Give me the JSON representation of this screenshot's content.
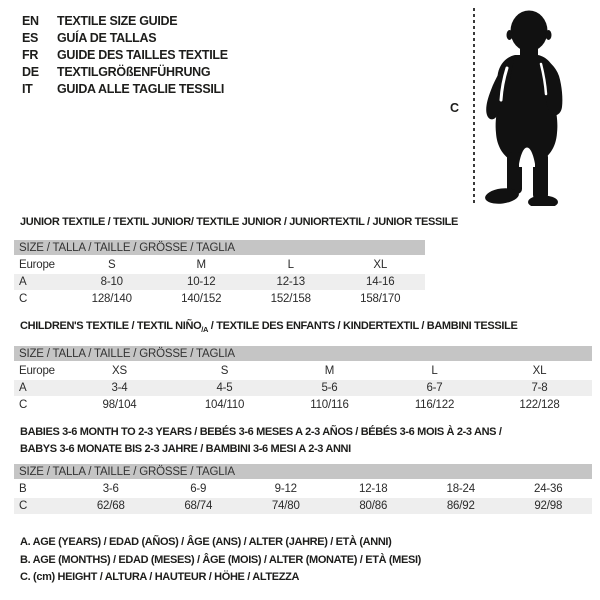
{
  "colors": {
    "table_header_bg": "#c5c5c5",
    "row_shaded_bg": "#eeeeee",
    "text": "#1d1d1b",
    "silhouette": "#111111"
  },
  "header": {
    "languages": [
      {
        "code": "EN",
        "label": "TEXTILE SIZE GUIDE"
      },
      {
        "code": "ES",
        "label": "GUÍA DE TALLAS"
      },
      {
        "code": "FR",
        "label": "GUIDE DES TAILLES TEXTILE"
      },
      {
        "code": "DE",
        "label": "TEXTILGRÖßENFÜHRUNG"
      },
      {
        "code": "IT",
        "label": "GUIDA ALLE TAGLIE TESSILI"
      }
    ]
  },
  "figure": {
    "height_label": "C",
    "image": "baby-toddler-silhouette"
  },
  "tables": [
    {
      "title": "JUNIOR TEXTILE / TEXTIL JUNIOR/ TEXTILE JUNIOR / JUNIORTEXTIL / JUNIOR TESSILE",
      "size_header": "SIZE / TALLA / TAILLE / GRÖSSE / TAGLIA",
      "rows": [
        {
          "cells": [
            "Europe",
            "S",
            "M",
            "L",
            "XL"
          ],
          "shaded": false
        },
        {
          "cells": [
            "A",
            "8-10",
            "10-12",
            "12-13",
            "14-16"
          ],
          "shaded": true
        },
        {
          "cells": [
            "C",
            "128/140",
            "140/152",
            "152/158",
            "158/170"
          ],
          "shaded": false
        }
      ]
    },
    {
      "title_parts": {
        "prefix": "CHILDREN'S TEXTILE / TEXTIL NIÑO",
        "sub": "/A",
        "suffix": " / TEXTILE DES ENFANTS / KINDERTEXTIL / BAMBINI TESSILE"
      },
      "size_header": "SIZE / TALLA / TAILLE / GRÖSSE / TAGLIA",
      "rows": [
        {
          "cells": [
            "Europe",
            "XS",
            "S",
            "M",
            "L",
            "XL"
          ],
          "shaded": false
        },
        {
          "cells": [
            "A",
            "3-4",
            "4-5",
            "5-6",
            "6-7",
            "7-8"
          ],
          "shaded": true
        },
        {
          "cells": [
            "C",
            "98/104",
            "104/110",
            "110/116",
            "116/122",
            "122/128"
          ],
          "shaded": false
        }
      ]
    },
    {
      "title_line1": "BABIES 3-6 MONTH TO 2-3 YEARS / BEBÉS 3-6 MESES A 2-3 AÑOS / BÉBÉS 3-6 MOIS À 2-3 ANS /",
      "title_line2": "BABYS 3-6 MONATE BIS 2-3 JAHRE / BAMBINI 3-6 MESI A 2-3 ANNI",
      "size_header": "SIZE / TALLA / TAILLE / GRÖSSE / TAGLIA",
      "rows": [
        {
          "cells": [
            "B",
            "3-6",
            "6-9",
            "9-12",
            "12-18",
            "18-24",
            "24-36"
          ],
          "shaded": false
        },
        {
          "cells": [
            "C",
            "62/68",
            "68/74",
            "74/80",
            "80/86",
            "86/92",
            "92/98"
          ],
          "shaded": true
        }
      ]
    }
  ],
  "legend": {
    "lines": [
      "A. AGE (YEARS) / EDAD (AÑOS) / ÂGE (ANS) / ALTER (JAHRE) / ETÀ (ANNI)",
      "B. AGE (MONTHS) / EDAD (MESES) / ÂGE (MOIS) / ALTER (MONATE) / ETÀ (MESI)",
      "C. (cm) HEIGHT / ALTURA / HAUTEUR / HÖHE / ALTEZZA"
    ]
  }
}
